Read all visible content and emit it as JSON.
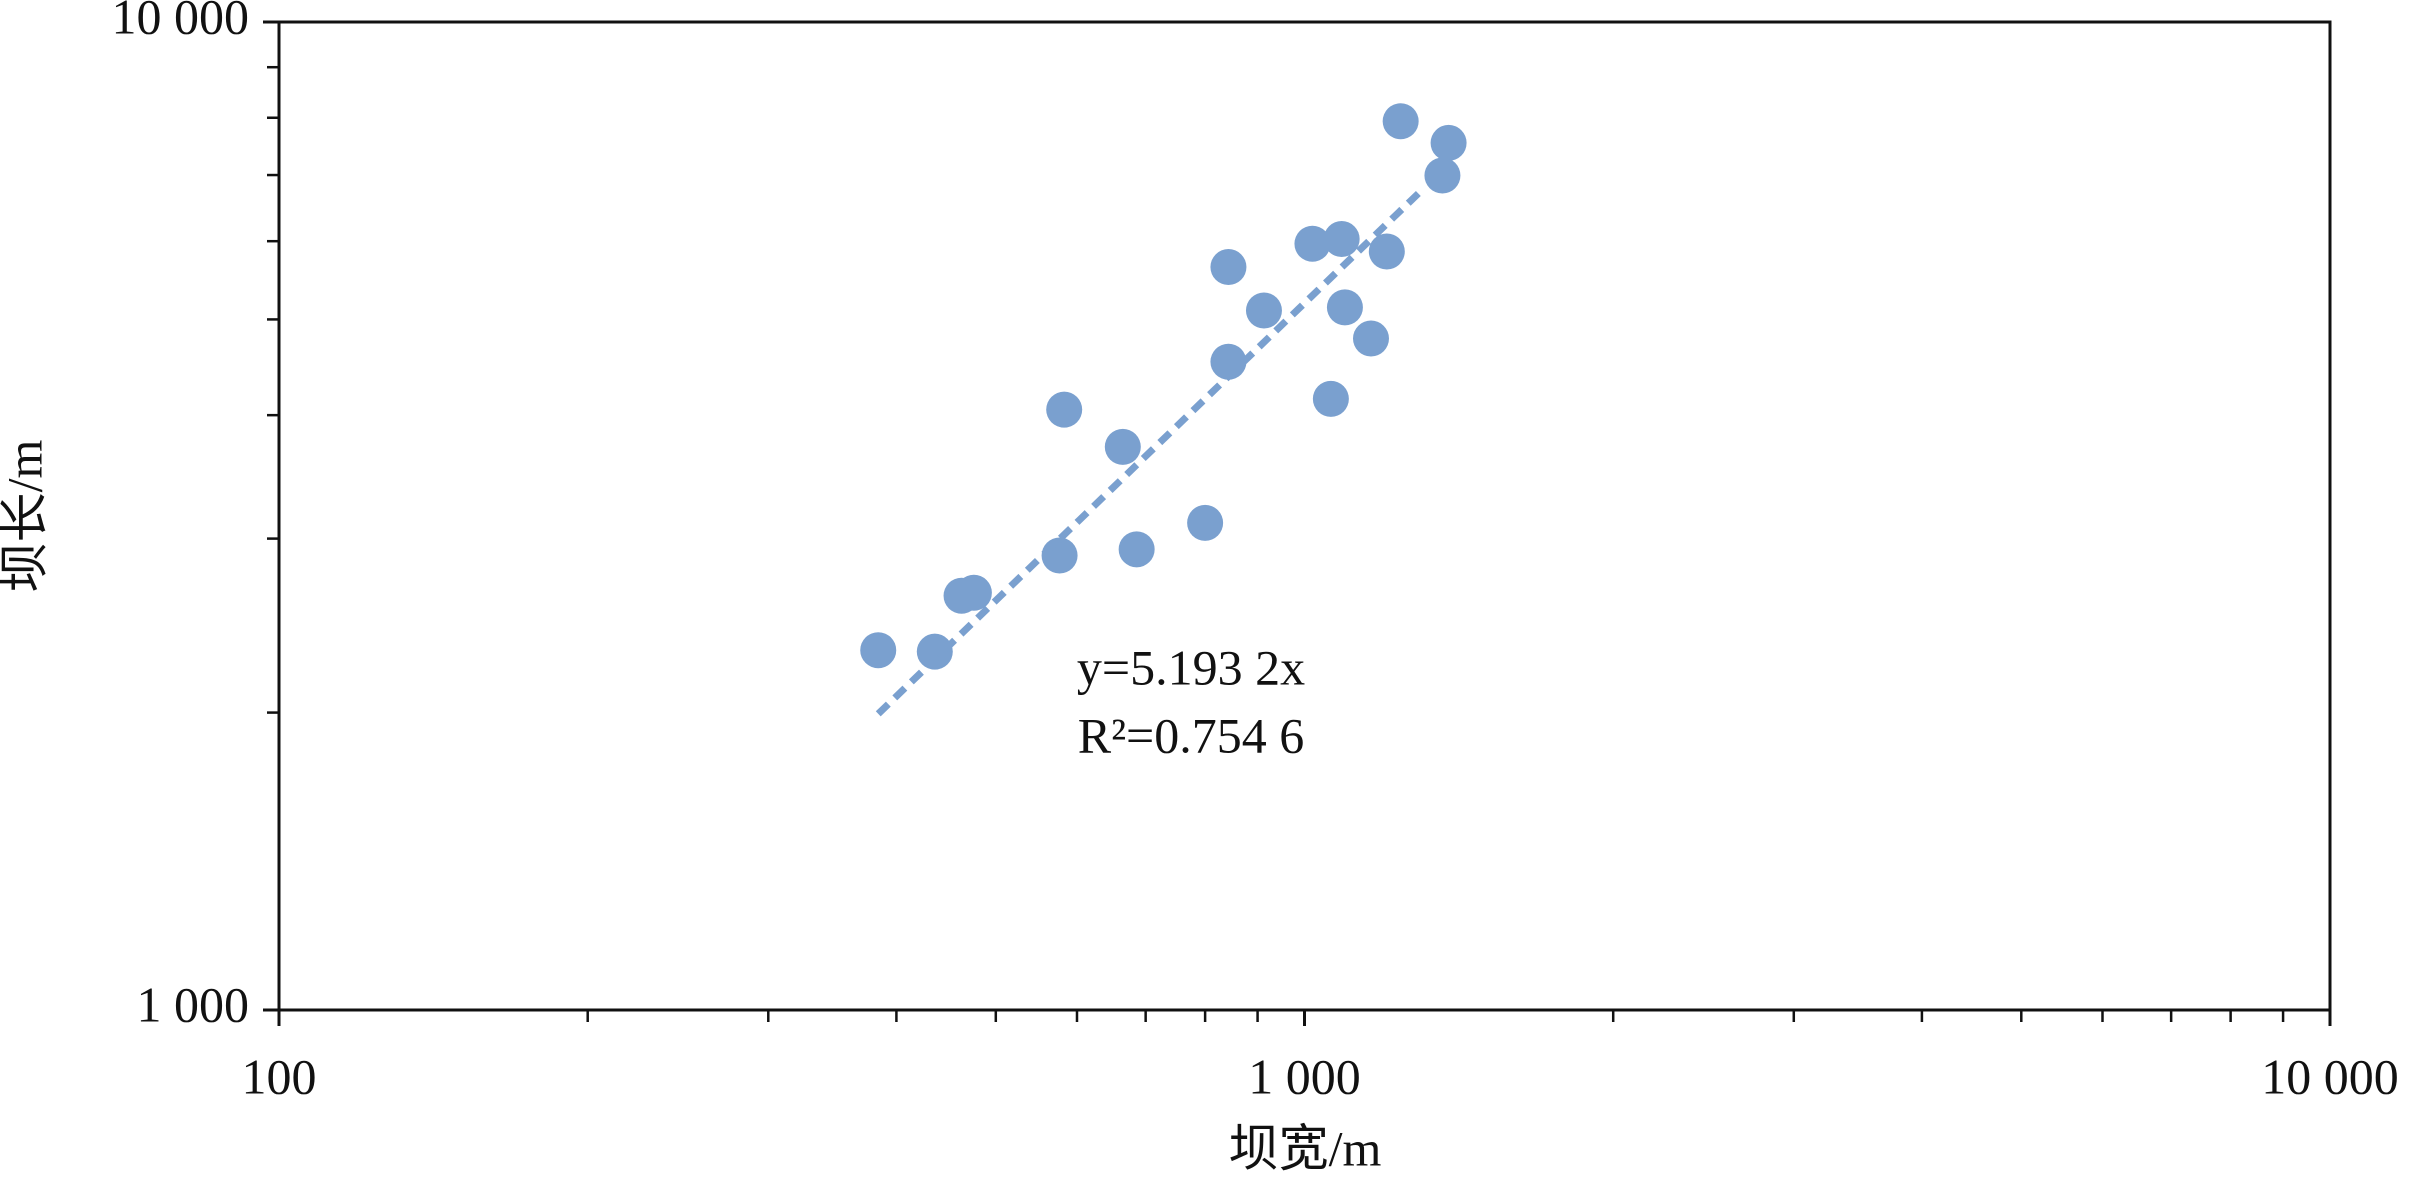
{
  "chart_data": {
    "type": "scatter",
    "xlabel": "坝宽/m",
    "ylabel": "坝长/m",
    "log_x": true,
    "log_y": true,
    "color": "#7aa0cf",
    "xlim": [
      100,
      10000
    ],
    "ylim": [
      1000,
      10000
    ],
    "xticks": [
      100,
      {
        "value": 1000,
        "label": "1 000"
      },
      {
        "value": 10000,
        "label": "10 000"
      }
    ],
    "yticks": [
      {
        "value": 1000,
        "label": "1 000"
      },
      {
        "value": 10000,
        "label": "10 000"
      }
    ],
    "xminorticks": [
      200,
      300,
      400,
      500,
      600,
      700,
      800,
      900,
      2000,
      3000,
      4000,
      5000,
      6000,
      7000,
      8000,
      9000
    ],
    "yminorticks": [
      2000,
      3000,
      4000,
      5000,
      6000,
      7000,
      8000,
      9000
    ],
    "x": [
      384,
      436,
      463,
      476,
      577,
      583,
      665,
      686,
      800,
      843,
      843,
      913,
      1018,
      1061,
      1087,
      1095,
      1161,
      1203,
      1241,
      1363,
      1382
    ],
    "values": [
      2313,
      2305,
      2626,
      2644,
      2884,
      4052,
      3715,
      2926,
      3112,
      4530,
      5649,
      5105,
      5964,
      4155,
      6030,
      5142,
      4782,
      5858,
      7935,
      6992,
      7544
    ],
    "trendline": {
      "slope": 5.1932,
      "x": [
        384,
        1294
      ],
      "color": "#7aa0cf"
    },
    "annotations": [
      "y=5.193 2x",
      "R²=0.754 6"
    ]
  }
}
